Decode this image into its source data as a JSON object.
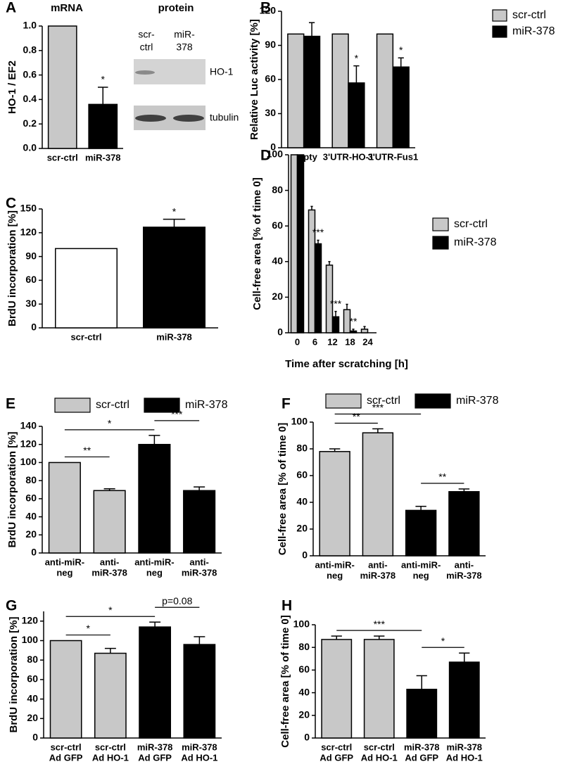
{
  "chart_data": [
    {
      "letter": "A",
      "type": "bar",
      "title": "mRNA",
      "y_label": "HO-1 / EF2",
      "categories": [
        "scr-ctrl",
        "miR-378"
      ],
      "values": [
        1.0,
        0.36
      ],
      "errors": [
        null,
        0.14
      ],
      "colors": [
        "#c8c8c8",
        "#000000"
      ],
      "ylim": [
        0,
        1.0
      ],
      "yticks": [
        {
          "value": 0,
          "label": "0.0"
        },
        {
          "value": 0.2,
          "label": "0.2"
        },
        {
          "value": 0.4,
          "label": "0.4"
        },
        {
          "value": 0.6,
          "label": "0.6"
        },
        {
          "value": 0.8,
          "label": "0.8"
        },
        {
          "value": 1.0,
          "label": "1.0"
        }
      ],
      "annotations": [
        {
          "label": "*",
          "index": 1
        }
      ]
    },
    {
      "letter": "B",
      "type": "bar",
      "y_label": "Relative Luc activity [%]",
      "categories": [
        "empty",
        "3'UTR-HO-1",
        "3'UTR-Fus1"
      ],
      "series": [
        {
          "name": "scr-ctrl",
          "color": "#c8c8c8",
          "values": [
            100,
            100,
            100
          ],
          "errors": [
            null,
            null,
            null
          ]
        },
        {
          "name": "miR-378",
          "color": "#000000",
          "values": [
            98,
            57,
            71
          ],
          "errors": [
            12,
            15,
            8
          ]
        }
      ],
      "ylim": [
        0,
        120
      ],
      "yticks": [
        0,
        30,
        60,
        90,
        120
      ],
      "legend": "top-right",
      "annotations": [
        {
          "label": "*",
          "index": 1,
          "series": 1
        },
        {
          "label": "*",
          "index": 2,
          "series": 1
        }
      ]
    },
    {
      "letter": "C",
      "type": "bar",
      "y_label": "BrdU incorporation [%]",
      "categories": [
        "scr-ctrl",
        "miR-378"
      ],
      "values": [
        100,
        127
      ],
      "errors": [
        null,
        10
      ],
      "colors": [
        "#ffffff",
        "#000000"
      ],
      "ylim": [
        0,
        150
      ],
      "yticks": [
        0,
        30,
        60,
        90,
        120,
        150
      ],
      "annotations": [
        {
          "label": "*",
          "index": 1
        }
      ]
    },
    {
      "letter": "D",
      "type": "bar",
      "y_label": "Cell-free area [% of time 0]",
      "x_label": "Time after scratching [h]",
      "categories": [
        "0",
        "6",
        "12",
        "18",
        "24"
      ],
      "series": [
        {
          "name": "scr-ctrl",
          "color": "#c8c8c8",
          "values": [
            100,
            69,
            38,
            13,
            2
          ],
          "errors": [
            null,
            2,
            2,
            3,
            1.5
          ]
        },
        {
          "name": "miR-378",
          "color": "#000000",
          "values": [
            100,
            50,
            9,
            1,
            0
          ],
          "errors": [
            null,
            2,
            3,
            1,
            null
          ]
        }
      ],
      "ylim": [
        0,
        100
      ],
      "yticks": [
        0,
        20,
        40,
        60,
        80,
        100
      ],
      "legend": "right",
      "annotations": [
        {
          "label": "***",
          "index": 1,
          "series": 1
        },
        {
          "label": "***",
          "index": 2,
          "series": 1
        },
        {
          "label": "**",
          "index": 3,
          "series": 1
        }
      ]
    },
    {
      "letter": "E",
      "type": "bar",
      "y_label": "BrdU incorporation [%]",
      "categories": [
        [
          "anti-miR-",
          "neg"
        ],
        [
          "anti-",
          "miR-378"
        ],
        [
          "anti-miR-",
          "neg"
        ],
        [
          "anti-",
          "miR-378"
        ]
      ],
      "values": [
        100,
        69,
        120,
        69
      ],
      "errors": [
        null,
        2,
        10,
        4
      ],
      "colors": [
        "#c8c8c8",
        "#c8c8c8",
        "#000000",
        "#000000"
      ],
      "ylim": [
        0,
        140
      ],
      "yticks": [
        0,
        20,
        40,
        60,
        80,
        100,
        120,
        140
      ],
      "legend": "top",
      "legend_entries": [
        {
          "name": "scr-ctrl",
          "color": "#c8c8c8"
        },
        {
          "name": "miR-378",
          "color": "#000000"
        }
      ],
      "brackets": [
        {
          "label": "**",
          "from": 0,
          "to": 1
        },
        {
          "label": "*",
          "from": 0,
          "to": 2
        },
        {
          "label": "***",
          "from": 2,
          "to": 3
        }
      ]
    },
    {
      "letter": "F",
      "type": "bar",
      "y_label": "Cell-free area [% of time 0]",
      "categories": [
        [
          "anti-miR-",
          "neg"
        ],
        [
          "anti-",
          "miR-378"
        ],
        [
          "anti-miR-",
          "neg"
        ],
        [
          "anti-",
          "miR-378"
        ]
      ],
      "values": [
        78,
        92,
        34,
        48
      ],
      "errors": [
        2,
        3,
        3,
        2
      ],
      "colors": [
        "#c8c8c8",
        "#c8c8c8",
        "#000000",
        "#000000"
      ],
      "ylim": [
        0,
        100
      ],
      "yticks": [
        0,
        20,
        40,
        60,
        80,
        100
      ],
      "legend": "top",
      "legend_entries": [
        {
          "name": "scr-ctrl",
          "color": "#c8c8c8"
        },
        {
          "name": "miR-378",
          "color": "#000000"
        }
      ],
      "brackets": [
        {
          "label": "**",
          "from": 0,
          "to": 1
        },
        {
          "label": "***",
          "from": 0,
          "to": 2
        },
        {
          "label": "**",
          "from": 2,
          "to": 3
        }
      ]
    },
    {
      "letter": "G",
      "type": "bar",
      "y_label": "BrdU incorporation [%]",
      "categories": [
        [
          "scr-ctrl",
          "Ad GFP"
        ],
        [
          "scr-ctrl",
          "Ad HO-1"
        ],
        [
          "miR-378",
          "Ad GFP"
        ],
        [
          "miR-378",
          "Ad HO-1"
        ]
      ],
      "values": [
        100,
        87,
        114,
        96
      ],
      "errors": [
        null,
        5,
        5,
        8
      ],
      "colors": [
        "#c8c8c8",
        "#c8c8c8",
        "#000000",
        "#000000"
      ],
      "ylim": [
        0,
        130
      ],
      "yticks": [
        0,
        20,
        40,
        60,
        80,
        100,
        120
      ],
      "brackets": [
        {
          "label": "*",
          "from": 0,
          "to": 1
        },
        {
          "label": "*",
          "from": 0,
          "to": 2
        },
        {
          "label": "p=0.08",
          "from": 2,
          "to": 3
        }
      ]
    },
    {
      "letter": "H",
      "type": "bar",
      "y_label": "Cell-free area [% of time 0]",
      "categories": [
        [
          "scr-ctrl",
          "Ad GFP"
        ],
        [
          "scr-ctrl",
          "Ad HO-1"
        ],
        [
          "miR-378",
          "Ad GFP"
        ],
        [
          "miR-378",
          "Ad HO-1"
        ]
      ],
      "values": [
        87,
        87,
        43,
        67
      ],
      "errors": [
        3,
        3,
        12,
        8
      ],
      "colors": [
        "#c8c8c8",
        "#c8c8c8",
        "#000000",
        "#000000"
      ],
      "ylim": [
        0,
        100
      ],
      "yticks": [
        0,
        20,
        40,
        60,
        80,
        100
      ],
      "brackets": [
        {
          "label": "***",
          "from": 0,
          "to": 2
        },
        {
          "label": "*",
          "from": 2,
          "to": 3
        }
      ]
    }
  ],
  "blot": {
    "title": "protein",
    "lanes": [
      [
        "scr-",
        "ctrl"
      ],
      [
        "miR-",
        "378"
      ]
    ],
    "bands": [
      "HO-1",
      "tubulin"
    ]
  }
}
